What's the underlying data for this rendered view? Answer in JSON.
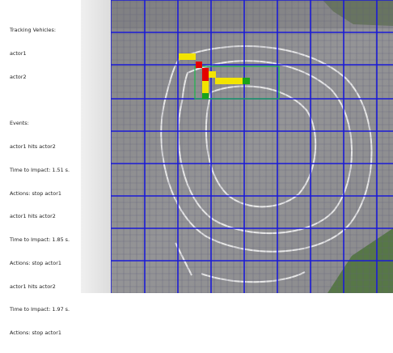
{
  "tracking": {
    "title": "Tracking Vehicles:",
    "actors": [
      "actor1",
      "actor2"
    ]
  },
  "events": {
    "title": "Events:",
    "lines": [
      "actor1 hits actor2",
      "Time to Impact: 1.51 s.",
      "Actions: stop actor1",
      "actor1 hits actor2",
      "Time to Impact: 1.85 s.",
      "Actions: stop actor1",
      "actor1 hits actor2",
      "Time to Impact: 1.97 s.",
      "Actions: stop actor1"
    ]
  },
  "colors": {
    "occupied_actor1": "#f2e400",
    "occupied_actor2": "#e40000",
    "contact": "#1aa31a",
    "coarse_grid": "#1b1bd6",
    "fine_grid": "#5e5e78",
    "zone_outline": "#19b64a"
  }
}
